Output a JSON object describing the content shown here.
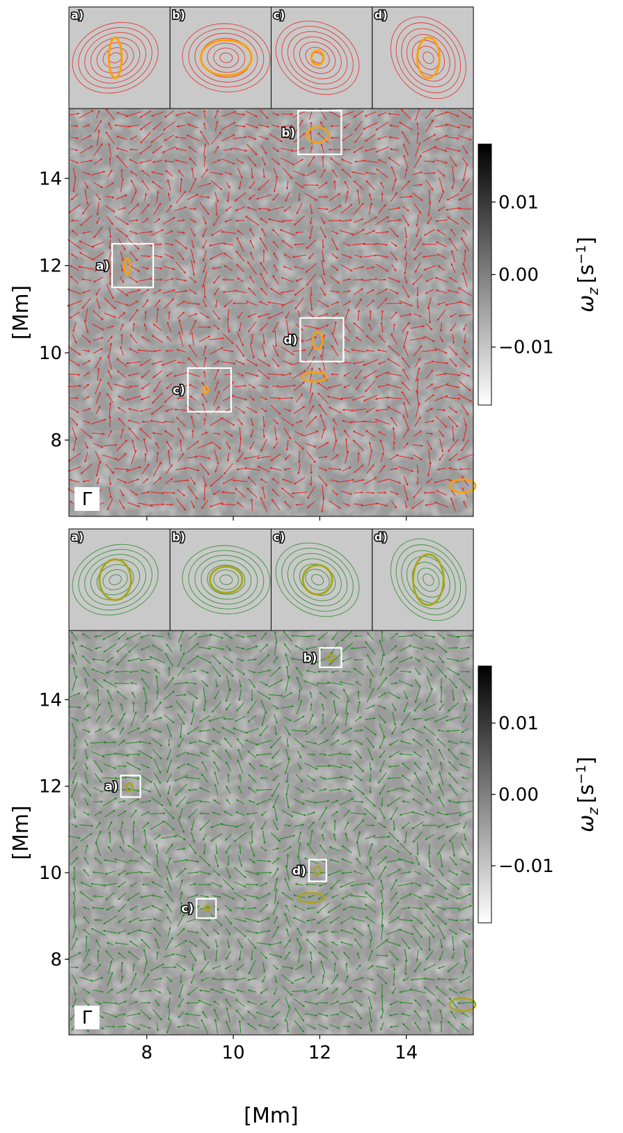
{
  "chart_data": [
    {
      "type": "heatmap",
      "title": "",
      "xlabel": "",
      "ylabel": "[Mm]",
      "xlim": [
        6.2,
        15.55
      ],
      "ylim": [
        6.25,
        15.6
      ],
      "xticks": [
        8,
        10,
        12,
        14
      ],
      "yticks": [
        8,
        10,
        12,
        14
      ],
      "xtick_labels": [
        "8",
        "10",
        "12",
        "14"
      ],
      "ytick_labels": [
        "8",
        "10",
        "12",
        "14"
      ],
      "grid": false,
      "vector_color": "#e8201c",
      "contour_color": "#ff9f00",
      "corner_label": "Γ",
      "colorbar": {
        "label_main": "ω",
        "label_sub": "z",
        "label_unit_open": "[s",
        "label_unit_exp": "−1",
        "label_unit_close": "]",
        "range": [
          -0.018,
          0.018
        ],
        "ticks": [
          0.01,
          0.0,
          -0.01
        ],
        "tick_labels": [
          "0.01",
          "0.00",
          "−0.01"
        ],
        "colormap": "gray (white → black)"
      },
      "regions": [
        {
          "label": "a)",
          "center": [
            7.55,
            11.98
          ],
          "box": [
            7.2,
            11.5,
            8.15,
            12.5
          ],
          "contour_w": 0.12,
          "contour_h": 0.38
        },
        {
          "label": "b)",
          "center": [
            11.95,
            15.0
          ],
          "box": [
            11.5,
            14.55,
            12.5,
            15.55
          ],
          "contour_w": 0.5,
          "contour_h": 0.35
        },
        {
          "label": "c)",
          "center": [
            9.36,
            9.15
          ],
          "box": [
            8.95,
            8.65,
            9.95,
            9.65
          ],
          "contour_w": 0.12,
          "contour_h": 0.14
        },
        {
          "label": "d)",
          "center": [
            11.95,
            10.28
          ],
          "box": [
            11.55,
            9.8,
            12.55,
            10.8
          ],
          "contour_w": 0.22,
          "contour_h": 0.4
        }
      ],
      "extra_contours": [
        {
          "center": [
            11.88,
            9.45
          ],
          "w": 0.55,
          "h": 0.22
        },
        {
          "center": [
            15.3,
            6.95
          ],
          "w": 0.6,
          "h": 0.3
        }
      ],
      "inset_labels": [
        "a)",
        "b)",
        "c)",
        "d)"
      ]
    },
    {
      "type": "heatmap",
      "title": "",
      "xlabel": "[Mm]",
      "ylabel": "[Mm]",
      "xlim": [
        6.2,
        15.55
      ],
      "ylim": [
        6.25,
        15.6
      ],
      "xticks": [
        8,
        10,
        12,
        14
      ],
      "yticks": [
        8,
        10,
        12,
        14
      ],
      "xtick_labels": [
        "8",
        "10",
        "12",
        "14"
      ],
      "ytick_labels": [
        "8",
        "10",
        "12",
        "14"
      ],
      "grid": false,
      "vector_color": "#1f8a1f",
      "contour_color": "#a8a51a",
      "corner_label": "Γ",
      "colorbar": {
        "label_main": "ω",
        "label_sub": "z",
        "label_unit_open": "[s",
        "label_unit_exp": "−1",
        "label_unit_close": "]",
        "range": [
          -0.018,
          0.018
        ],
        "ticks": [
          0.01,
          0.0,
          -0.01
        ],
        "tick_labels": [
          "0.01",
          "0.00",
          "−0.01"
        ],
        "colormap": "gray (white → black)"
      },
      "regions": [
        {
          "label": "a)",
          "center": [
            7.6,
            11.98
          ],
          "box": [
            7.4,
            11.75,
            7.85,
            12.25
          ],
          "contour_w": 0.14,
          "contour_h": 0.18
        },
        {
          "label": "b)",
          "center": [
            12.25,
            14.97
          ],
          "box": [
            12.0,
            14.75,
            12.5,
            15.2
          ],
          "contour_w": 0.16,
          "contour_h": 0.13
        },
        {
          "label": "c)",
          "center": [
            9.4,
            9.18
          ],
          "box": [
            9.15,
            8.95,
            9.6,
            9.4
          ],
          "contour_w": 0.13,
          "contour_h": 0.13
        },
        {
          "label": "d)",
          "center": [
            11.95,
            10.05
          ],
          "box": [
            11.75,
            9.8,
            12.15,
            10.3
          ],
          "contour_w": 0.12,
          "contour_h": 0.2
        }
      ],
      "extra_contours": [
        {
          "center": [
            11.8,
            9.42
          ],
          "w": 0.6,
          "h": 0.22
        },
        {
          "center": [
            15.3,
            6.95
          ],
          "w": 0.6,
          "h": 0.3
        }
      ],
      "inset_labels": [
        "a)",
        "b)",
        "c)",
        "d)"
      ]
    }
  ]
}
